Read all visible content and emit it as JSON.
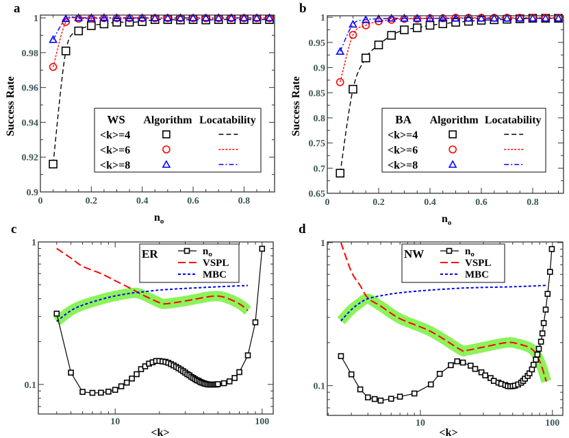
{
  "figure": {
    "panel_labels": [
      "a",
      "b",
      "c",
      "d"
    ]
  },
  "chart_data": [
    {
      "panel": "a",
      "type": "line+scatter",
      "xlabel": {
        "main": "n",
        "sub": "o"
      },
      "ylabel": "Success Rate",
      "xscale": "linear",
      "yscale": "linear",
      "xlim": [
        0,
        0.92
      ],
      "ylim": [
        0.9,
        1.0016
      ],
      "xticks": [
        0,
        0.2,
        0.4,
        0.6,
        0.8
      ],
      "xtick_labels": [
        "0",
        "0.2",
        "0.4",
        "0.6",
        "0.8"
      ],
      "yticks": [
        0.9,
        0.92,
        0.94,
        0.96,
        0.98,
        1
      ],
      "ytick_labels": [
        "0.9",
        "0.92",
        "0.94",
        "0.96",
        "0.98",
        "1"
      ],
      "grid": false,
      "legend": {
        "placement": "lower-right",
        "header": [
          "WS",
          "Algorithm",
          "Locatability"
        ]
      },
      "x": [
        0.05,
        0.1,
        0.15,
        0.2,
        0.25,
        0.3,
        0.35,
        0.4,
        0.45,
        0.5,
        0.55,
        0.6,
        0.65,
        0.7,
        0.75,
        0.8,
        0.85,
        0.9
      ],
      "series": [
        {
          "name": "<k>=4",
          "color": "#000000",
          "marker": "square",
          "line": "dashed",
          "algorithm": [
            0.916,
            0.981,
            0.9925,
            0.9955,
            0.9965,
            0.9975,
            0.9975,
            0.9978,
            0.999,
            0.999,
            0.9988,
            0.999,
            0.9988,
            0.999,
            0.999,
            0.999,
            0.999,
            0.999
          ],
          "locatability": [
            0.916,
            0.981,
            0.9925,
            0.9955,
            0.9965,
            0.9975,
            0.9975,
            0.9978,
            0.999,
            0.999,
            0.9988,
            0.999,
            0.9988,
            0.999,
            0.999,
            0.999,
            0.999,
            0.999
          ]
        },
        {
          "name": "<k>=6",
          "color": "#ff0000",
          "marker": "circle",
          "line": "dotted",
          "algorithm": [
            0.9718,
            0.9977,
            0.9995,
            0.9997,
            0.9998,
            0.9998,
            0.9998,
            0.9998,
            0.9998,
            0.9998,
            0.9998,
            0.9998,
            0.9998,
            0.9998,
            0.9998,
            0.9998,
            0.9998,
            0.9998
          ],
          "locatability": [
            0.9718,
            0.9977,
            0.9995,
            0.9997,
            0.9998,
            0.9998,
            0.9998,
            0.9998,
            0.9998,
            0.9998,
            0.9998,
            0.9998,
            0.9998,
            0.9998,
            0.9998,
            0.9998,
            0.9998,
            0.9998
          ]
        },
        {
          "name": "<k>=8",
          "color": "#0000ff",
          "marker": "triangle",
          "line": "dash-dot",
          "algorithm": [
            0.9875,
            0.9995,
            1,
            1,
            1,
            1,
            1,
            1,
            1,
            1,
            1,
            1,
            1,
            1,
            1,
            1,
            1,
            1
          ],
          "locatability": [
            0.9875,
            0.9995,
            1,
            1,
            1,
            1,
            1,
            1,
            1,
            1,
            1,
            1,
            1,
            1,
            1,
            1,
            1,
            1
          ]
        }
      ]
    },
    {
      "panel": "b",
      "type": "line+scatter",
      "xlabel": {
        "main": "n",
        "sub": "o"
      },
      "ylabel": "Success Rate",
      "xscale": "linear",
      "yscale": "linear",
      "xlim": [
        0,
        0.92
      ],
      "ylim": [
        0.65,
        1.003
      ],
      "xticks": [
        0,
        0.2,
        0.4,
        0.6,
        0.8
      ],
      "xtick_labels": [
        "0",
        "0.2",
        "0.4",
        "0.6",
        "0.8"
      ],
      "yticks": [
        0.65,
        0.7,
        0.75,
        0.8,
        0.85,
        0.9,
        0.95,
        1
      ],
      "ytick_labels": [
        "0.65",
        "0.7",
        "0.75",
        "0.8",
        "0.85",
        "0.9",
        "0.95",
        "1"
      ],
      "grid": false,
      "legend": {
        "placement": "lower-right",
        "header": [
          "BA",
          "Algorithm",
          "Locatability"
        ]
      },
      "x": [
        0.05,
        0.1,
        0.15,
        0.2,
        0.25,
        0.3,
        0.35,
        0.4,
        0.45,
        0.5,
        0.55,
        0.6,
        0.65,
        0.7,
        0.75,
        0.8,
        0.85,
        0.9
      ],
      "series": [
        {
          "name": "<k>=4",
          "color": "#000000",
          "marker": "square",
          "line": "dashed",
          "algorithm": [
            0.69,
            0.857,
            0.919,
            0.945,
            0.964,
            0.975,
            0.979,
            0.984,
            0.987,
            0.99,
            0.992,
            0.994,
            0.995,
            0.996,
            0.997,
            0.998,
            0.998,
            0.998
          ],
          "locatability": [
            0.69,
            0.857,
            0.919,
            0.945,
            0.964,
            0.975,
            0.979,
            0.984,
            0.987,
            0.99,
            0.992,
            0.994,
            0.995,
            0.996,
            0.997,
            0.998,
            0.998,
            0.998
          ]
        },
        {
          "name": "<k>=6",
          "color": "#ff0000",
          "marker": "circle",
          "line": "dotted",
          "algorithm": [
            0.871,
            0.965,
            0.984,
            0.992,
            0.995,
            0.997,
            0.997,
            0.998,
            0.998,
            0.999,
            0.999,
            0.999,
            0.999,
            0.999,
            0.999,
            0.999,
            0.999,
            0.999
          ],
          "locatability": [
            0.871,
            0.965,
            0.984,
            0.992,
            0.995,
            0.997,
            0.997,
            0.998,
            0.998,
            0.999,
            0.999,
            0.999,
            0.999,
            0.999,
            0.999,
            0.999,
            0.999,
            0.999
          ]
        },
        {
          "name": "<k>=8",
          "color": "#0000ff",
          "marker": "triangle",
          "line": "dash-dot",
          "algorithm": [
            0.932,
            0.986,
            0.995,
            0.997,
            0.998,
            0.998,
            0.998,
            0.998,
            0.998,
            0.998,
            0.998,
            0.998,
            0.998,
            0.998,
            0.998,
            0.998,
            0.998,
            0.998
          ],
          "locatability": [
            0.932,
            0.986,
            0.995,
            0.997,
            0.998,
            0.998,
            0.998,
            0.998,
            0.998,
            0.998,
            0.998,
            0.998,
            0.998,
            0.998,
            0.998,
            0.998,
            0.998,
            0.998
          ]
        }
      ]
    },
    {
      "panel": "c",
      "type": "line",
      "xlabel": "<k>",
      "xscale": "log",
      "yscale": "log",
      "xlim": [
        3.0,
        119
      ],
      "ylim": [
        0.062,
        1
      ],
      "xticks": [
        10,
        100
      ],
      "xtick_labels": [
        "10",
        "100"
      ],
      "yticks": [
        0.1,
        1
      ],
      "ytick_labels": [
        "0.1",
        "1"
      ],
      "grid": false,
      "highlight_color": "#8cf25a",
      "legend": {
        "placement": "top-right",
        "title": "ER",
        "entries": [
          {
            "label": "n",
            "sub": "o"
          },
          {
            "label": "VSPL"
          },
          {
            "label": "MBC"
          }
        ]
      },
      "series": [
        {
          "name": "n_o",
          "color": "#000000",
          "marker": "square",
          "line": "solid",
          "x": [
            4,
            5,
            6,
            7,
            8,
            9,
            10,
            11,
            12,
            13,
            14,
            15,
            16,
            17,
            18,
            19,
            20,
            21,
            22,
            23,
            24,
            25,
            26,
            27,
            28,
            29,
            30,
            31,
            32,
            33,
            34,
            35,
            36,
            37,
            38,
            39,
            40,
            41,
            42,
            43,
            44,
            45,
            46,
            47,
            48,
            49,
            50,
            55,
            60,
            65,
            70,
            80,
            90,
            100
          ],
          "y": [
            0.314,
            0.121,
            0.0886,
            0.0873,
            0.0875,
            0.089,
            0.0916,
            0.097,
            0.103,
            0.11,
            0.118,
            0.128,
            0.134,
            0.14,
            0.143,
            0.146,
            0.146,
            0.145,
            0.144,
            0.142,
            0.139,
            0.136,
            0.133,
            0.13,
            0.127,
            0.124,
            0.121,
            0.118,
            0.116,
            0.113,
            0.111,
            0.109,
            0.107,
            0.106,
            0.104,
            0.103,
            0.102,
            0.101,
            0.1005,
            0.1,
            0.0998,
            0.0997,
            0.0997,
            0.0998,
            0.0999,
            0.1,
            0.1005,
            0.102,
            0.105,
            0.111,
            0.122,
            0.16,
            0.273,
            0.896
          ]
        },
        {
          "name": "VSPL",
          "color": "#ff0000",
          "line": "long-dash",
          "x": [
            4,
            5,
            6,
            8,
            10,
            13,
            15,
            20,
            22,
            30,
            45,
            55,
            70,
            80
          ],
          "y": [
            0.9,
            0.77,
            0.675,
            0.6,
            0.535,
            0.467,
            0.43,
            0.375,
            0.368,
            0.385,
            0.415,
            0.41,
            0.368,
            0.33
          ]
        },
        {
          "name": "MBC",
          "color": "#0000ff",
          "line": "short-dash",
          "x": [
            4,
            5,
            6,
            8,
            10,
            13,
            15,
            20,
            22,
            30,
            45,
            55,
            70,
            80
          ],
          "y": [
            0.277,
            0.33,
            0.36,
            0.395,
            0.418,
            0.438,
            0.445,
            0.46,
            0.463,
            0.472,
            0.482,
            0.487,
            0.492,
            0.495
          ]
        }
      ]
    },
    {
      "panel": "d",
      "type": "line",
      "xlabel": "<k>",
      "xscale": "log",
      "yscale": "log",
      "xlim": [
        1.97,
        120
      ],
      "ylim": [
        0.062,
        1.01
      ],
      "xticks": [
        10,
        100
      ],
      "xtick_labels": [
        "10",
        "100"
      ],
      "yticks": [
        0.1,
        1
      ],
      "ytick_labels": [
        "0.1",
        "1"
      ],
      "grid": false,
      "highlight_color": "#8cf25a",
      "legend": {
        "placement": "top-center",
        "title": "NW",
        "entries": [
          {
            "label": "n",
            "sub": "o"
          },
          {
            "label": "VSPL"
          },
          {
            "label": "MBC"
          }
        ]
      },
      "series": [
        {
          "name": "n_o",
          "color": "#000000",
          "marker": "square",
          "line": "solid",
          "x": [
            2.5,
            3,
            3.5,
            4,
            4.5,
            5,
            6,
            7,
            9,
            12,
            14,
            17,
            19,
            21,
            24,
            26,
            29,
            31,
            34,
            36,
            39,
            41,
            44,
            46,
            48,
            50,
            52,
            55,
            58,
            60,
            62,
            65,
            67,
            70,
            72,
            75,
            77,
            79,
            82,
            84,
            86,
            89,
            92,
            96,
            99
          ],
          "y": [
            0.161,
            0.12,
            0.0942,
            0.0828,
            0.0807,
            0.0787,
            0.081,
            0.0838,
            0.0882,
            0.102,
            0.121,
            0.139,
            0.148,
            0.145,
            0.138,
            0.131,
            0.124,
            0.118,
            0.113,
            0.108,
            0.105,
            0.103,
            0.101,
            0.0993,
            0.0989,
            0.0993,
            0.1,
            0.102,
            0.105,
            0.108,
            0.112,
            0.117,
            0.122,
            0.13,
            0.14,
            0.152,
            0.165,
            0.181,
            0.203,
            0.232,
            0.274,
            0.34,
            0.438,
            0.624,
            0.902
          ]
        },
        {
          "name": "VSPL",
          "color": "#ff0000",
          "line": "long-dash",
          "x": [
            2.5,
            3,
            3.5,
            4,
            5,
            7,
            12,
            20,
            22,
            30,
            45,
            55,
            70,
            80,
            90
          ],
          "y": [
            1.0,
            0.626,
            0.5,
            0.41,
            0.36,
            0.294,
            0.239,
            0.179,
            0.176,
            0.186,
            0.2,
            0.196,
            0.18,
            0.149,
            0.107
          ]
        },
        {
          "name": "MBC",
          "color": "#0000ff",
          "line": "short-dash",
          "x": [
            2.5,
            3,
            3.5,
            4,
            5,
            7,
            12,
            20,
            22,
            30,
            45,
            55,
            70,
            80,
            90
          ],
          "y": [
            0.284,
            0.34,
            0.38,
            0.405,
            0.425,
            0.446,
            0.466,
            0.48,
            0.482,
            0.486,
            0.49,
            0.493,
            0.497,
            0.5,
            0.502
          ]
        }
      ]
    }
  ]
}
